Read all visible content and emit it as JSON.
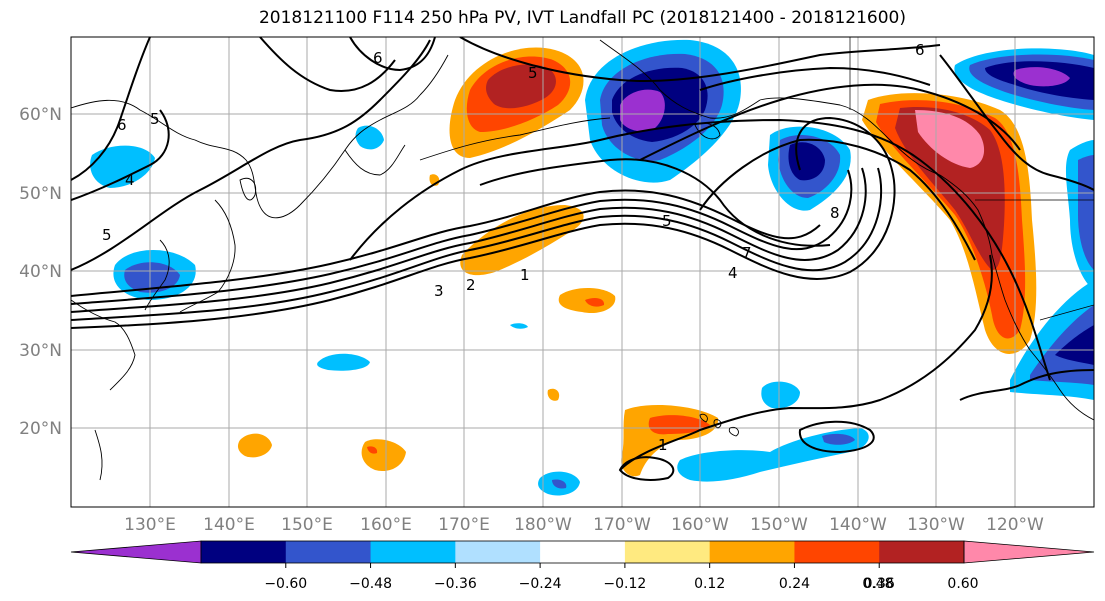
{
  "title": "2018121100 F114 250 hPa PV, IVT Landfall PC (2018121400 - 2018121600)",
  "map": {
    "lat_labels": [
      "60°N",
      "50°N",
      "40°N",
      "30°N",
      "20°N"
    ],
    "lon_labels": [
      "130°E",
      "140°E",
      "150°E",
      "160°E",
      "170°E",
      "180°W",
      "170°W",
      "160°W",
      "150°W",
      "140°W",
      "130°W",
      "120°W"
    ],
    "contour_labels": [
      "6",
      "5",
      "4",
      "5",
      "6",
      "5",
      "8",
      "5",
      "7",
      "4",
      "3",
      "2",
      "1",
      "1",
      "6"
    ]
  },
  "colorbar": {
    "colors": [
      "#9b30d0",
      "#000080",
      "#3355cc",
      "#00bfff",
      "#b0e0ff",
      "#ffffff",
      "#ffea80",
      "#ffa500",
      "#ff4500",
      "#b22222",
      "#ff88aa"
    ],
    "tick_labels": [
      "−0.60",
      "−0.48",
      "−0.36",
      "−0.24",
      "−0.12",
      "0.12",
      "0.24",
      "0.36",
      "0.48",
      "0.60"
    ]
  }
}
